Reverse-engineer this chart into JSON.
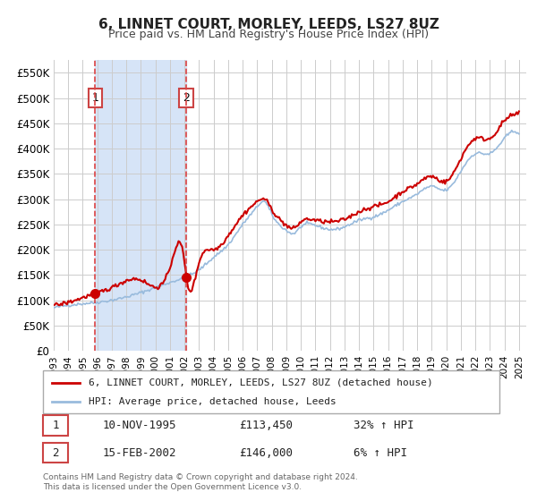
{
  "title": "6, LINNET COURT, MORLEY, LEEDS, LS27 8UZ",
  "subtitle": "Price paid vs. HM Land Registry's House Price Index (HPI)",
  "ylabel": "",
  "xlim": [
    1993.0,
    2025.5
  ],
  "ylim": [
    0,
    575000
  ],
  "yticks": [
    0,
    50000,
    100000,
    150000,
    200000,
    250000,
    300000,
    350000,
    400000,
    450000,
    500000,
    550000
  ],
  "ytick_labels": [
    "£0",
    "£50K",
    "£100K",
    "£150K",
    "£200K",
    "£250K",
    "£300K",
    "£350K",
    "£400K",
    "£450K",
    "£500K",
    "£550K"
  ],
  "xticks": [
    1993,
    1994,
    1995,
    1996,
    1997,
    1998,
    1999,
    2000,
    2001,
    2002,
    2003,
    2004,
    2005,
    2006,
    2007,
    2008,
    2009,
    2010,
    2011,
    2012,
    2013,
    2014,
    2015,
    2016,
    2017,
    2018,
    2019,
    2020,
    2021,
    2022,
    2023,
    2024,
    2025
  ],
  "purchase1_x": 1995.86,
  "purchase1_y": 113450,
  "purchase2_x": 2002.12,
  "purchase2_y": 146000,
  "vline1_x": 1995.86,
  "vline2_x": 2002.12,
  "shade_color": "#d6e4f7",
  "red_line_color": "#cc0000",
  "blue_line_color": "#99bbdd",
  "vline_color": "#dd4444",
  "grid_color": "#cccccc",
  "legend_label_red": "6, LINNET COURT, MORLEY, LEEDS, LS27 8UZ (detached house)",
  "legend_label_blue": "HPI: Average price, detached house, Leeds",
  "table_row1_num": "1",
  "table_row1_date": "10-NOV-1995",
  "table_row1_price": "£113,450",
  "table_row1_hpi": "32% ↑ HPI",
  "table_row2_num": "2",
  "table_row2_date": "15-FEB-2002",
  "table_row2_price": "£146,000",
  "table_row2_hpi": "6% ↑ HPI",
  "footer": "Contains HM Land Registry data © Crown copyright and database right 2024.\nThis data is licensed under the Open Government Licence v3.0.",
  "background_color": "#ffffff"
}
